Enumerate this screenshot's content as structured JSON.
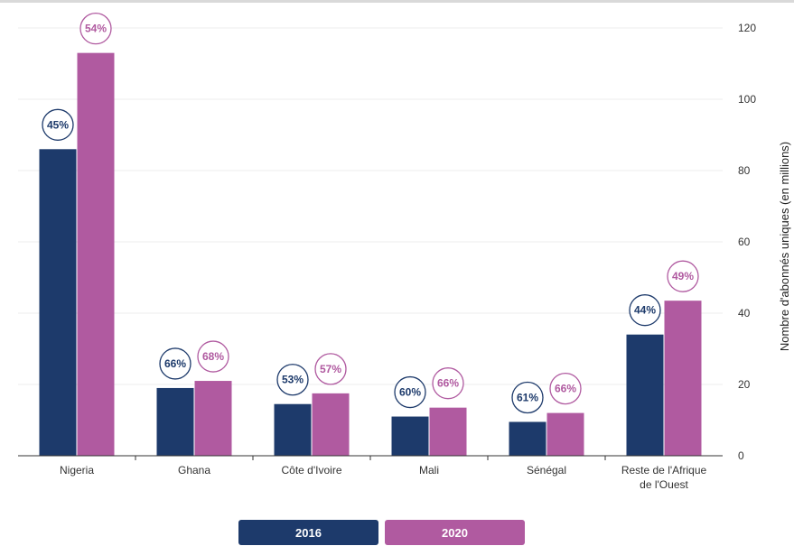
{
  "chart_data": {
    "type": "bar",
    "categories": [
      "Nigeria",
      "Ghana",
      "Côte d'Ivoire",
      "Mali",
      "Sénégal",
      "Reste de l'Afrique de l'Ouest"
    ],
    "category_lines": [
      [
        "Nigeria"
      ],
      [
        "Ghana"
      ],
      [
        "Côte d'Ivoire"
      ],
      [
        "Mali"
      ],
      [
        "Sénégal"
      ],
      [
        "Reste de l'Afrique",
        "de l'Ouest"
      ]
    ],
    "series": [
      {
        "name": "2016",
        "color": "#1d3a6b",
        "values": [
          86,
          19,
          14.5,
          11,
          9.5,
          34
        ],
        "labels": [
          "45%",
          "66%",
          "53%",
          "60%",
          "61%",
          "44%"
        ]
      },
      {
        "name": "2020",
        "color": "#b05aa0",
        "values": [
          113,
          21,
          17.5,
          13.5,
          12,
          43.5
        ],
        "labels": [
          "54%",
          "68%",
          "57%",
          "66%",
          "66%",
          "49%"
        ]
      }
    ],
    "ylabel": "Nombre d'abonnés uniques (en millions)",
    "ylim": [
      0,
      120
    ],
    "yticks": [
      0,
      20,
      40,
      60,
      80,
      100,
      120
    ],
    "grid": true,
    "y_axis_side": "right",
    "legend_position": "bottom-center"
  },
  "legend": {
    "items": [
      {
        "label": "2016",
        "color": "#1d3a6b"
      },
      {
        "label": "2020",
        "color": "#b05aa0"
      }
    ]
  }
}
